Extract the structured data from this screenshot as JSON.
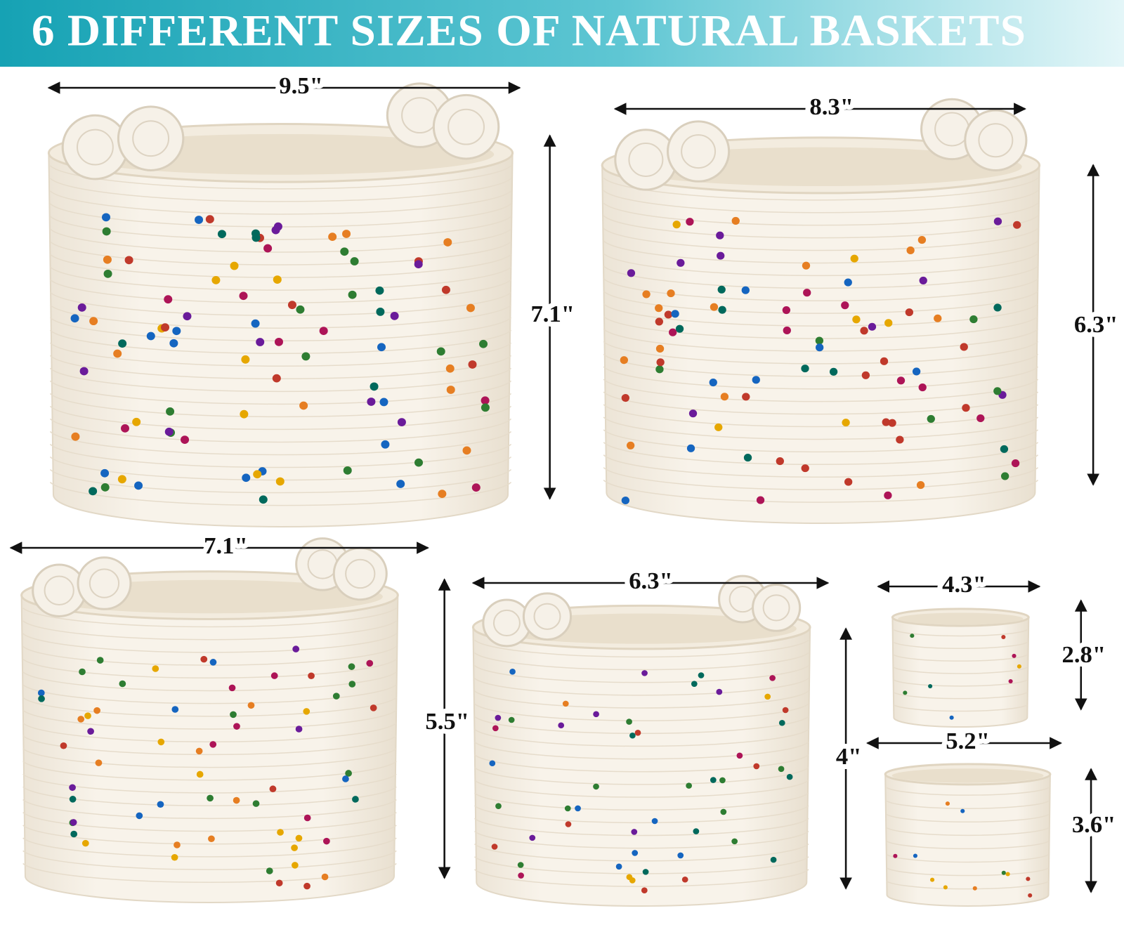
{
  "header": {
    "title": "6 DIFFERENT SIZES OF NATURAL BASKETS"
  },
  "baskets": [
    {
      "width": "9.5\"",
      "height": "7.1\""
    },
    {
      "width": "8.3\"",
      "height": "6.3\""
    },
    {
      "width": "7.1\"",
      "height": "5.5\""
    },
    {
      "width": "6.3\"",
      "height": "4\""
    },
    {
      "width": "4.3\"",
      "height": "2.8\""
    },
    {
      "width": "5.2\"",
      "height": "3.6\""
    }
  ]
}
